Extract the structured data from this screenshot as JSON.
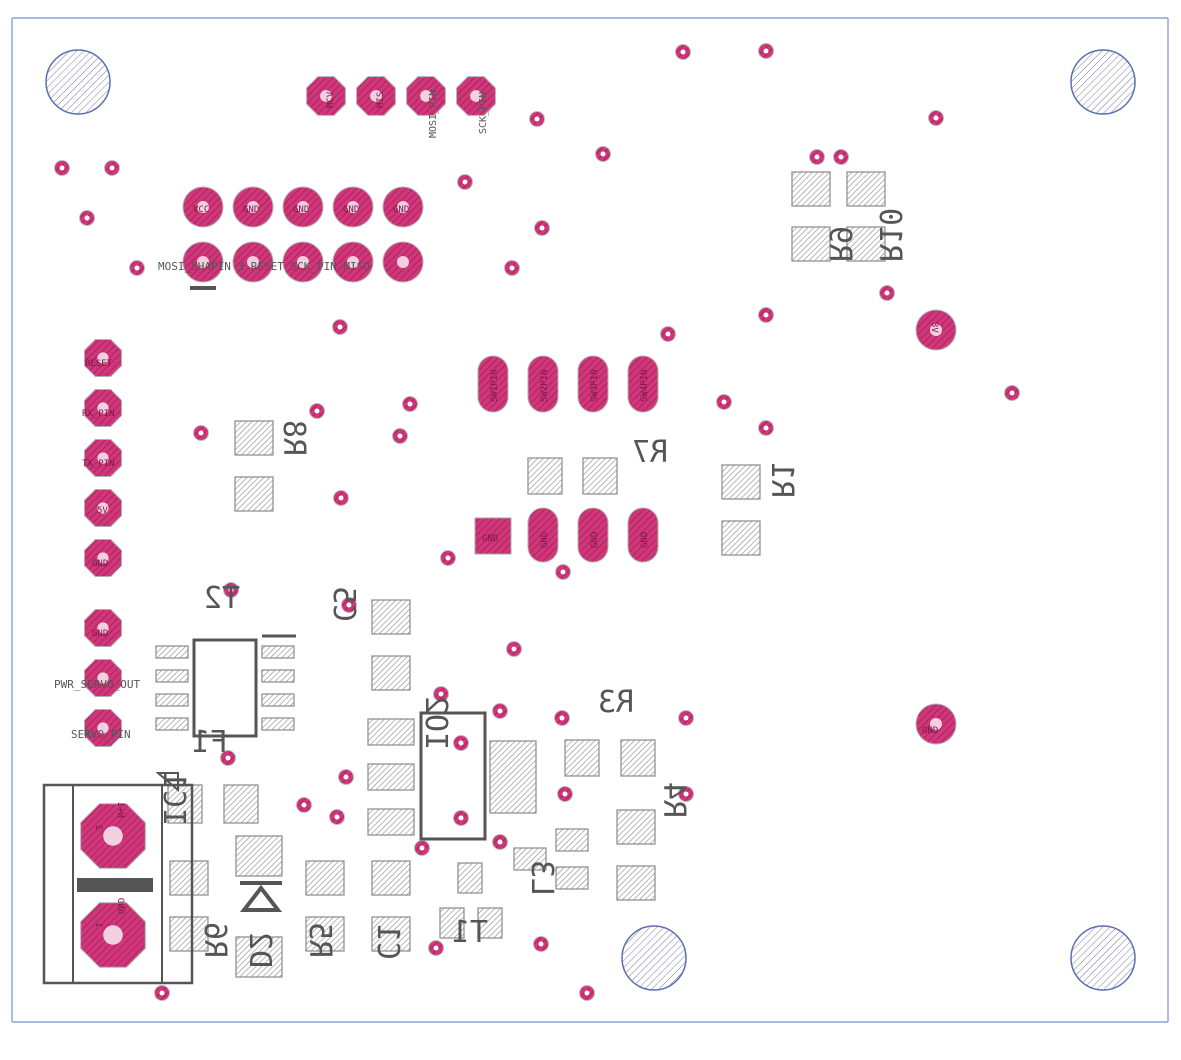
{
  "colors": {
    "background": "#ffffff",
    "board_outline": "#7a8fd0",
    "pad": "#d1357a",
    "pad_hatch": "#9a1f55",
    "smd": "#aaaaaa",
    "silkscreen": "#555555",
    "mount_hole": "#5a6fb0"
  },
  "designators": {
    "r8": "R8",
    "r7": "R7",
    "r1": "R1",
    "r9": "R9",
    "r10": "R10",
    "r3": "R3",
    "r4": "R4",
    "r5": "R5",
    "r6": "R6",
    "c5": "C5",
    "c1": "C1",
    "ic1": "IC1",
    "ic2": "IO2",
    "f1": "F1",
    "d2": "D2",
    "l3": "L3",
    "t1": "T1",
    "t2": "T2",
    "ic_plug": "IC1"
  },
  "pads": {
    "top_row": [
      "MCV",
      "MIS",
      "MOSI_PIN",
      "SCK_PIN"
    ],
    "top_row_labels": [
      "MOSI_PIN",
      "SCK_PIN"
    ],
    "isp_row1": [
      "VCC",
      "GND",
      "GND",
      "GND",
      "GND"
    ],
    "isp_row2_labels": [
      "MOSI_SHAPIN",
      "RESET",
      "SCK_PIN",
      "MISO"
    ],
    "isp_row2_text": "MOSI_SHAPIN 3  RESET  SCK_PIN  MISO",
    "left_col": [
      "RESET",
      "RX_PIN",
      "TX_PIN",
      "5V",
      "GND"
    ],
    "left_col2": [
      "GND",
      "PWR_SERVO_OUT",
      "SERVO_PIN"
    ],
    "sw_row": [
      "SW1PIN",
      "SW2PIN",
      "SW3PIN",
      "SW4PIN"
    ],
    "sw_bottom": [
      "GND",
      "GND",
      "GND",
      "GND"
    ],
    "power_right": [
      "3V",
      "GND"
    ],
    "terminal": [
      "N+1",
      "GND"
    ],
    "terminal_nums": [
      "2",
      "1"
    ]
  },
  "icons": [
    "mounting-hole-icon",
    "via-icon",
    "diode-icon"
  ]
}
